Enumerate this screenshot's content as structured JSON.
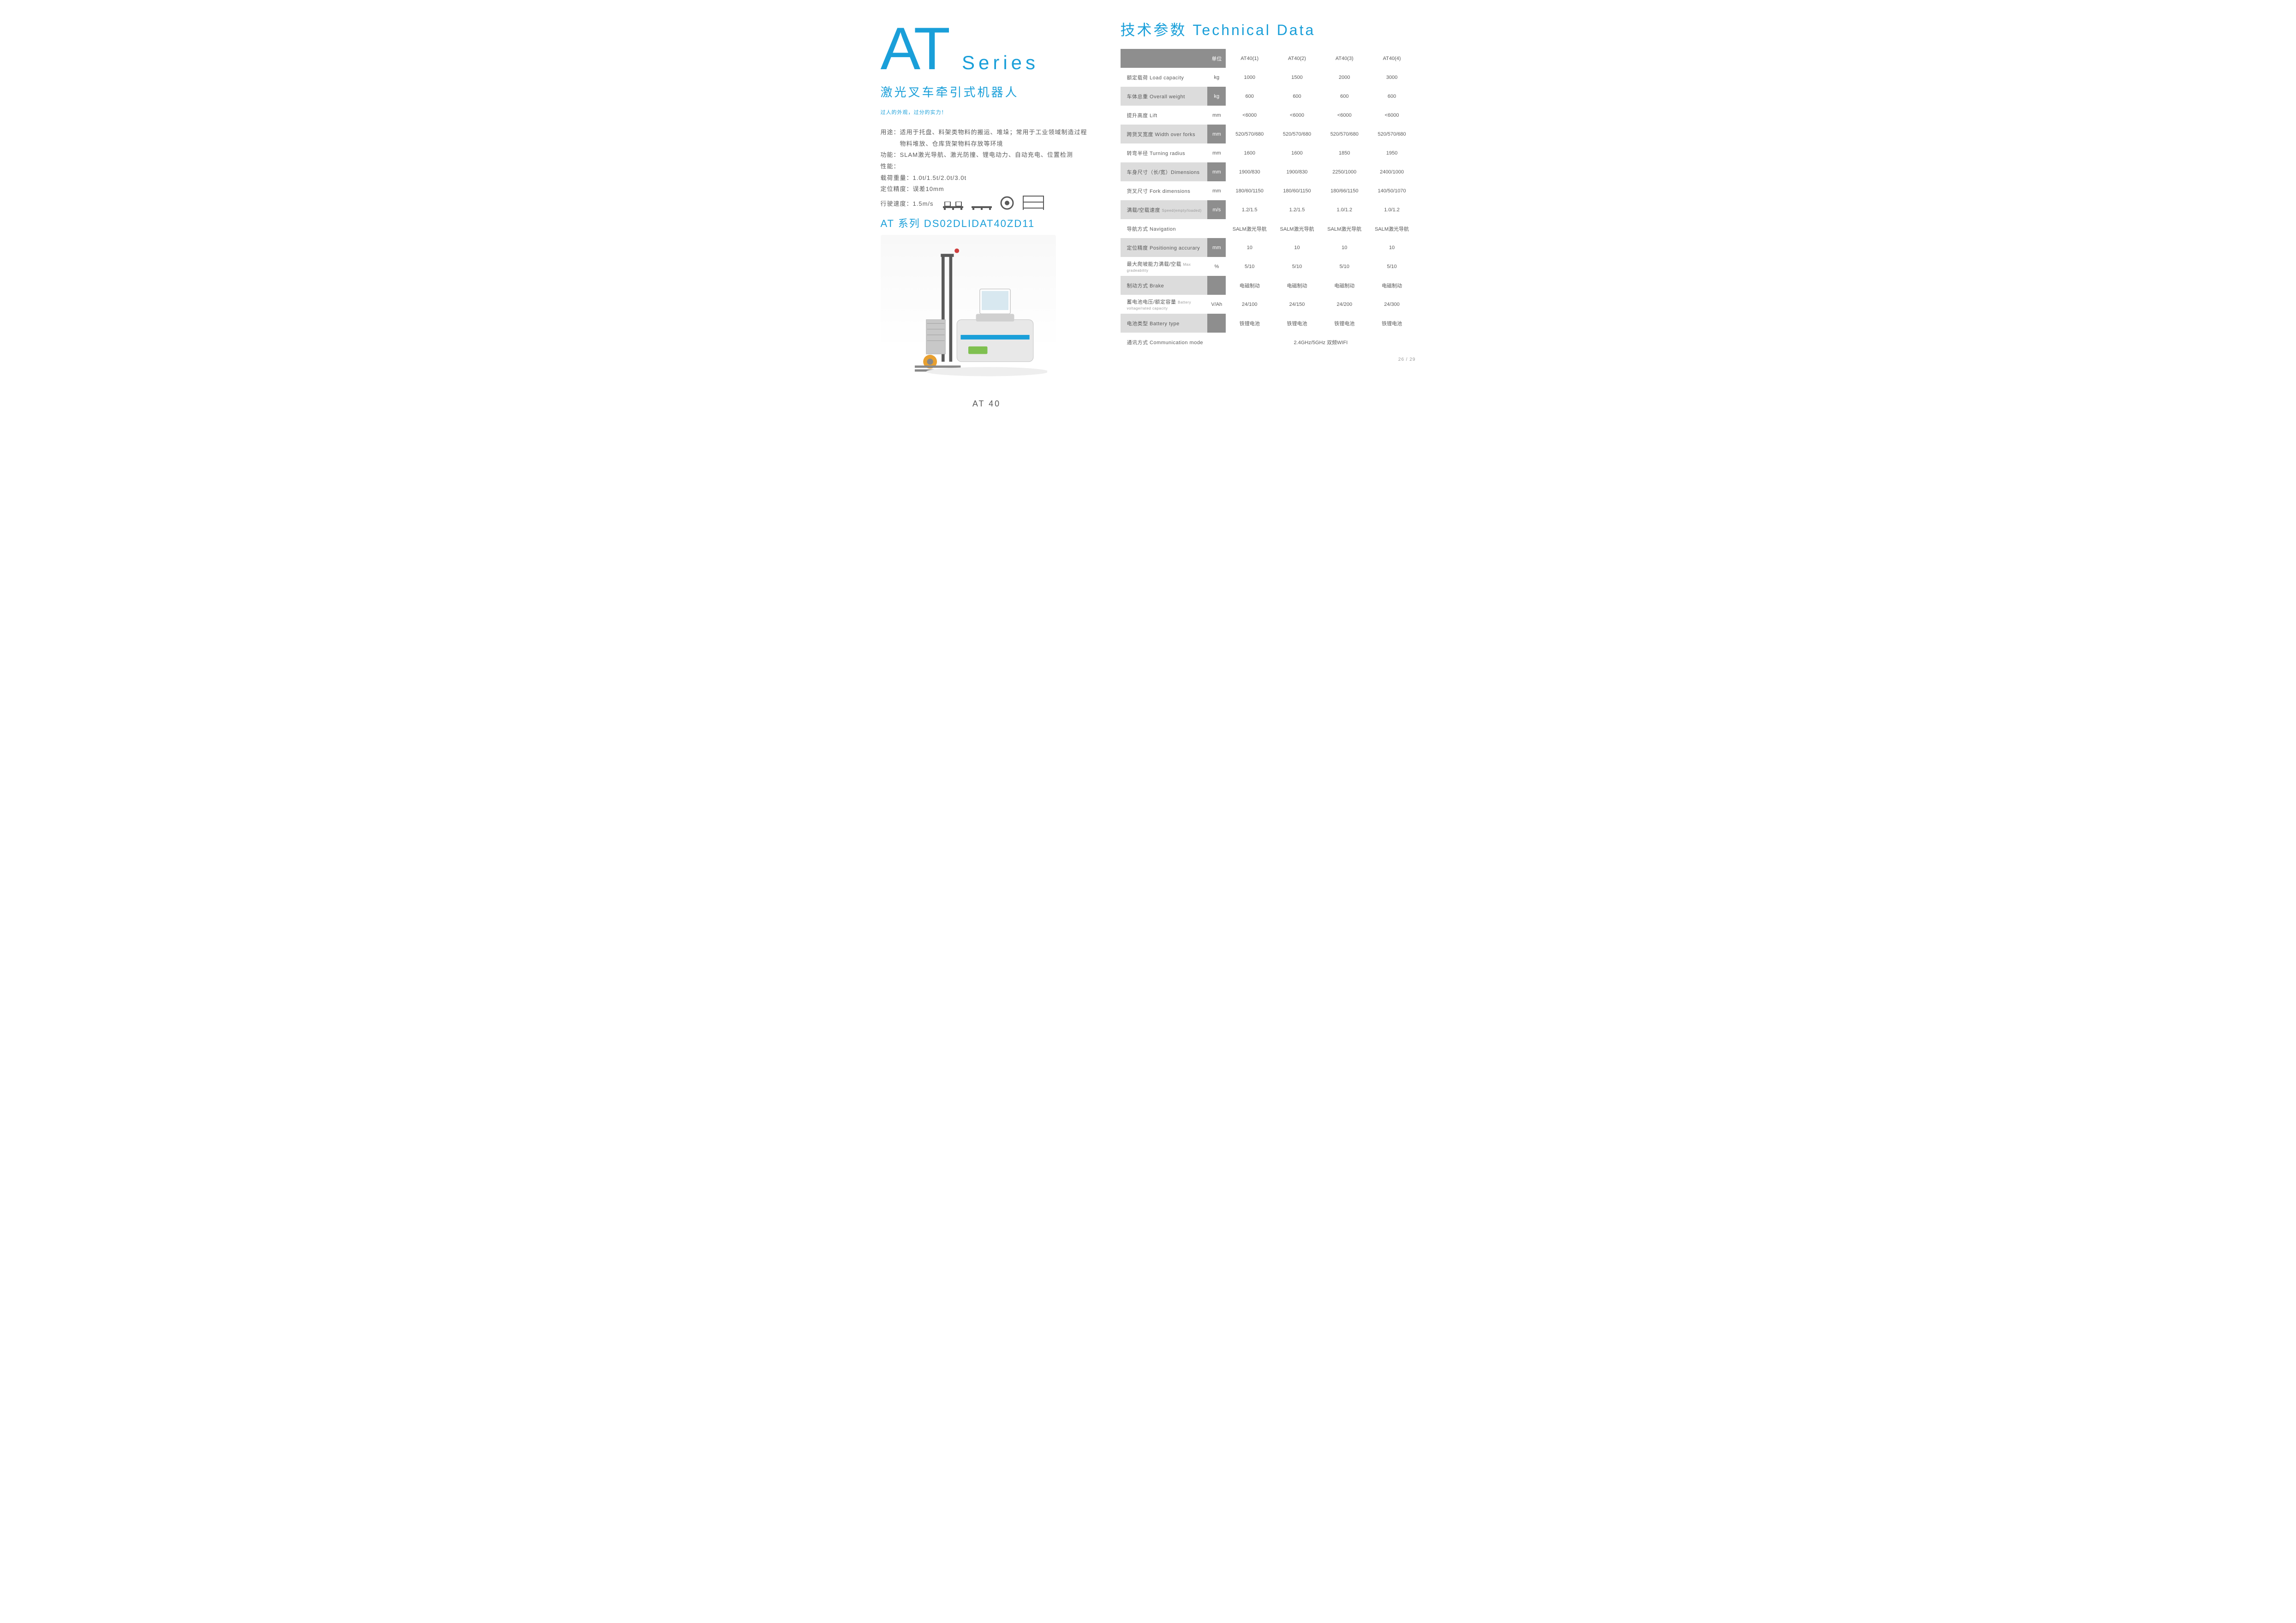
{
  "left": {
    "at": "AT",
    "series": "Series",
    "subtitle": "激光叉车牵引式机器人",
    "tagline": "过人的外观，过分的实力！",
    "usage_label": "用途：",
    "usage_text": "适用于托盘、料架类物料的搬运、堆垛；常用于工业领域制造过程物料堆放、仓库货架物料存放等环境",
    "func_label": "功能：",
    "func_text": "SLAM激光导航、激光防撞、锂电动力、自动充电、位置检测",
    "perf_label": "性能：",
    "load_label": "载荷重量：",
    "load_value": "1.0t/1.5t/2.0t/3.0t",
    "precision_label": "定位精度：",
    "precision_value": "误差10mm",
    "speed_label": "行驶速度：",
    "speed_value": "1.5m/s",
    "model": "AT 系列 DS02DLIDAT40ZD11",
    "caption": "AT 40"
  },
  "right": {
    "title": "技术参数 Technical Data",
    "header_unit": "单位",
    "columns": [
      "AT40(1)",
      "AT40(2)",
      "AT40(3)",
      "AT40(4)"
    ],
    "rows": [
      {
        "param": "额定载荷 Load capacity",
        "unit": "kg",
        "vals": [
          "1000",
          "1500",
          "2000",
          "3000"
        ],
        "stripe": "even"
      },
      {
        "param": "车体总重 Overall weight",
        "unit": "kg",
        "vals": [
          "600",
          "600",
          "600",
          "600"
        ],
        "stripe": "odd"
      },
      {
        "param": "提升高度 Lift",
        "unit": "mm",
        "vals": [
          "<6000",
          "<6000",
          "<6000",
          "<6000"
        ],
        "stripe": "even"
      },
      {
        "param": "跨货叉宽度 Width over forks",
        "unit": "mm",
        "vals": [
          "520/570/680",
          "520/570/680",
          "520/570/680",
          "520/570/680"
        ],
        "stripe": "odd"
      },
      {
        "param": "转弯半径 Turning radius",
        "unit": "mm",
        "vals": [
          "1600",
          "1600",
          "1850",
          "1950"
        ],
        "stripe": "even"
      },
      {
        "param": "车身尺寸（长/宽）Dimensions",
        "unit": "mm",
        "vals": [
          "1900/830",
          "1900/830",
          "2250/1000",
          "2400/1000"
        ],
        "stripe": "odd"
      },
      {
        "param": "货叉尺寸 Fork dimensions",
        "unit": "mm",
        "vals": [
          "180/60/1150",
          "180/60/1150",
          "180/66/1150",
          "140/50/1070"
        ],
        "stripe": "even"
      },
      {
        "param": "满载/空载速度 ",
        "sub": "Speed(empty/loaded)",
        "unit": "m/s",
        "vals": [
          "1.2/1.5",
          "1.2/1.5",
          "1.0/1.2",
          "1.0/1.2"
        ],
        "stripe": "odd"
      },
      {
        "param": "导航方式 Navigation",
        "unit": "",
        "vals": [
          "SALM激光导航",
          "SALM激光导航",
          "SALM激光导航",
          "SALM激光导航"
        ],
        "stripe": "even"
      },
      {
        "param": "定位精度 Positioning accurary",
        "unit": "mm",
        "vals": [
          "10",
          "10",
          "10",
          "10"
        ],
        "stripe": "odd"
      },
      {
        "param": "最大爬坡能力满载/空载 ",
        "sub": "Max gradeability",
        "unit": "%",
        "vals": [
          "5/10",
          "5/10",
          "5/10",
          "5/10"
        ],
        "stripe": "even"
      },
      {
        "param": "制动方式 Brake",
        "unit": "",
        "vals": [
          "电磁制动",
          "电磁制动",
          "电磁制动",
          "电磁制动"
        ],
        "stripe": "odd"
      },
      {
        "param": "蓄电池电压/额定容量 ",
        "sub": "Battery voltage/rated capacity",
        "unit": "V/Ah",
        "vals": [
          "24/100",
          "24/150",
          "24/200",
          "24/300"
        ],
        "stripe": "even"
      },
      {
        "param": "电池类型 Battery type",
        "unit": "",
        "vals": [
          "铁锂电池",
          "铁锂电池",
          "铁锂电池",
          "铁锂电池"
        ],
        "stripe": "odd"
      },
      {
        "param": "通讯方式 Communication mode",
        "unit": "",
        "merged": "2.4GHz/5GHz 双频WIFI",
        "stripe": "even"
      }
    ],
    "page_num": "26 / 29"
  }
}
